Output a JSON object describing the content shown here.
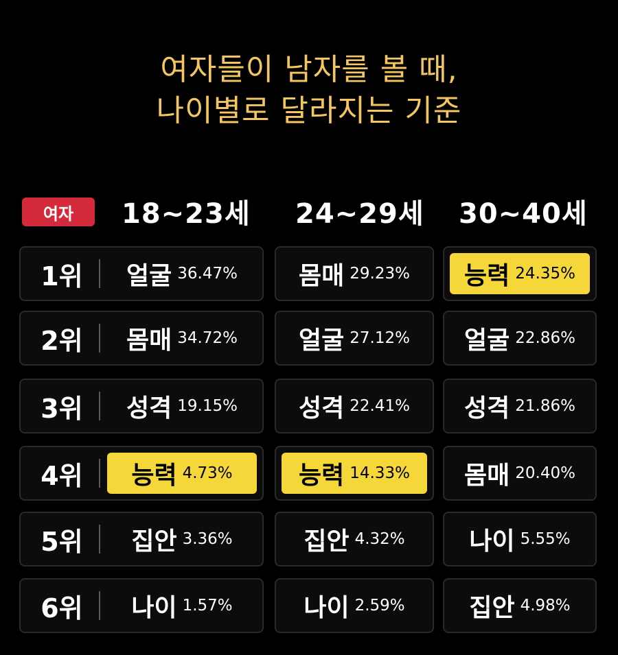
{
  "title": {
    "line1": "여자들이 남자를 볼 때,",
    "line2": "나이별로 달라지는 기준"
  },
  "header": {
    "badge": "여자",
    "columns": [
      "18~23세",
      "24~29세",
      "30~40세"
    ]
  },
  "colors": {
    "background": "#000000",
    "title": "#f3c661",
    "badge": "#d42a3c",
    "highlight": "#f5d73a",
    "text": "#ffffff"
  },
  "chart_data": {
    "type": "table",
    "title": "여자들이 남자를 볼 때, 나이별로 달라지는 기준",
    "columns": [
      "18~23세",
      "24~29세",
      "30~40세"
    ],
    "ranks": [
      "1위",
      "2위",
      "3위",
      "4위",
      "5위",
      "6위"
    ],
    "rows": [
      [
        {
          "item": "얼굴",
          "pct": "36.47%",
          "highlight": false
        },
        {
          "item": "몸매",
          "pct": "29.23%",
          "highlight": false
        },
        {
          "item": "능력",
          "pct": "24.35%",
          "highlight": true
        }
      ],
      [
        {
          "item": "몸매",
          "pct": "34.72%",
          "highlight": false
        },
        {
          "item": "얼굴",
          "pct": "27.12%",
          "highlight": false
        },
        {
          "item": "얼굴",
          "pct": "22.86%",
          "highlight": false
        }
      ],
      [
        {
          "item": "성격",
          "pct": "19.15%",
          "highlight": false
        },
        {
          "item": "성격",
          "pct": "22.41%",
          "highlight": false
        },
        {
          "item": "성격",
          "pct": "21.86%",
          "highlight": false
        }
      ],
      [
        {
          "item": "능력",
          "pct": "4.73%",
          "highlight": true
        },
        {
          "item": "능력",
          "pct": "14.33%",
          "highlight": true
        },
        {
          "item": "몸매",
          "pct": "20.40%",
          "highlight": false
        }
      ],
      [
        {
          "item": "집안",
          "pct": "3.36%",
          "highlight": false
        },
        {
          "item": "집안",
          "pct": "4.32%",
          "highlight": false
        },
        {
          "item": "나이",
          "pct": "5.55%",
          "highlight": false
        }
      ],
      [
        {
          "item": "나이",
          "pct": "1.57%",
          "highlight": false
        },
        {
          "item": "나이",
          "pct": "2.59%",
          "highlight": false
        },
        {
          "item": "집안",
          "pct": "4.98%",
          "highlight": false
        }
      ]
    ]
  }
}
